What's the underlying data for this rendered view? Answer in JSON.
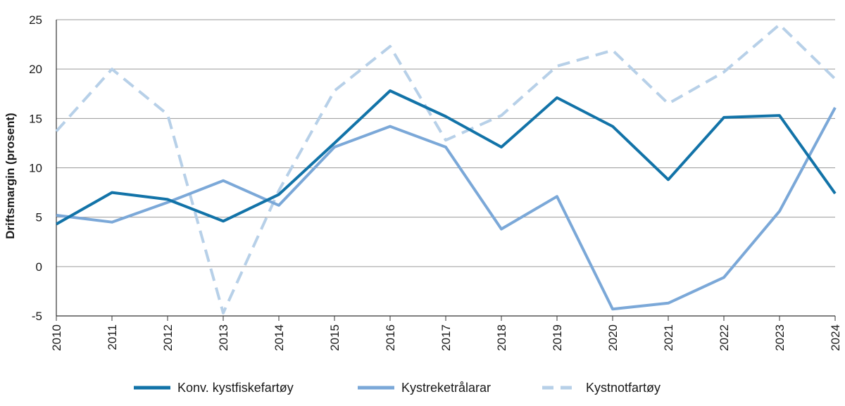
{
  "chart_data": {
    "type": "line",
    "title": "",
    "xlabel": "",
    "ylabel": "Driftsmargin (prosent)",
    "ylim": [
      -5,
      25
    ],
    "yticks": [
      -5,
      0,
      5,
      10,
      15,
      20,
      25
    ],
    "grid": true,
    "legend_position": "bottom",
    "categories": [
      "2010",
      "2011",
      "2012",
      "2013",
      "2014",
      "2015",
      "2016",
      "2017",
      "2018",
      "2019",
      "2020",
      "2021",
      "2022",
      "2023",
      "2024"
    ],
    "series": [
      {
        "name": "Konv. kystfiskefartøy",
        "color": "#1273a8",
        "style": "solid",
        "values": [
          4.3,
          7.5,
          6.8,
          4.6,
          7.3,
          12.5,
          17.8,
          15.2,
          12.1,
          17.1,
          14.2,
          8.8,
          15.1,
          15.3,
          7.4
        ]
      },
      {
        "name": "Kystreketrålarar",
        "color": "#7ba8d8",
        "style": "solid",
        "values": [
          5.2,
          4.5,
          6.5,
          8.7,
          6.2,
          12.1,
          14.2,
          12.1,
          3.8,
          7.1,
          -4.3,
          -3.7,
          -1.1,
          5.6,
          16.1
        ]
      },
      {
        "name": "Kystnotfartøy",
        "color": "#b7d0e8",
        "style": "dashed",
        "values": [
          13.7,
          20.0,
          15.4,
          -4.7,
          7.7,
          17.8,
          22.3,
          12.8,
          15.3,
          20.3,
          21.9,
          16.5,
          19.7,
          24.5,
          19.0
        ]
      }
    ]
  }
}
